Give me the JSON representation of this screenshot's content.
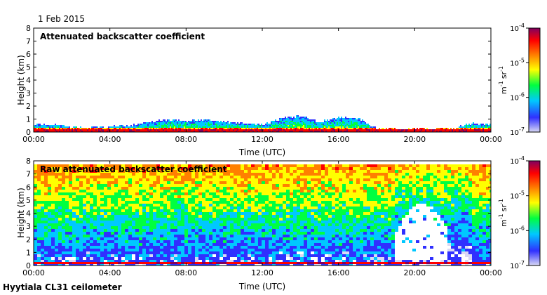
{
  "date": "1 Feb 2015",
  "footer": "Hyytiala CL31 ceilometer",
  "colors": {
    "colormap": [
      "#d8d8f4",
      "#3030ff",
      "#00c8ff",
      "#00ff40",
      "#ffff00",
      "#ff8000",
      "#ff0000",
      "#800060"
    ],
    "axis": "#000000"
  },
  "chart_data": [
    {
      "type": "heatmap",
      "title": "Attenuated backscatter coefficient",
      "xlabel": "Time (UTC)",
      "ylabel": "Height (km)",
      "x_ticks": [
        "00:00",
        "04:00",
        "08:00",
        "12:00",
        "16:00",
        "20:00",
        "00:00"
      ],
      "y_ticks": [
        0,
        1,
        2,
        3,
        4,
        5,
        6,
        7,
        8
      ],
      "xlim_hours": [
        0,
        24
      ],
      "ylim_km": [
        0,
        8
      ],
      "colorbar": {
        "scale": "log",
        "range": [
          1e-07,
          0.0001
        ],
        "tick_labels": [
          {
            "base": "10",
            "exp": "-4"
          },
          {
            "base": "10",
            "exp": "-5"
          },
          {
            "base": "10",
            "exp": "-6"
          },
          {
            "base": "10",
            "exp": "-7"
          }
        ],
        "unit": {
          "m": "m",
          "m_exp": "-1",
          "sr": "sr",
          "sr_exp": "-1"
        }
      },
      "layer_top_km": [
        {
          "hour": 0,
          "km": 0.5
        },
        {
          "hour": 1,
          "km": 0.5
        },
        {
          "hour": 2,
          "km": 0.35
        },
        {
          "hour": 3,
          "km": 0.3
        },
        {
          "hour": 4,
          "km": 0.35
        },
        {
          "hour": 5,
          "km": 0.45
        },
        {
          "hour": 6,
          "km": 0.7
        },
        {
          "hour": 7,
          "km": 0.9
        },
        {
          "hour": 8,
          "km": 0.8
        },
        {
          "hour": 9,
          "km": 0.9
        },
        {
          "hour": 10,
          "km": 0.75
        },
        {
          "hour": 11,
          "km": 0.6
        },
        {
          "hour": 12,
          "km": 0.5
        },
        {
          "hour": 13,
          "km": 1.0
        },
        {
          "hour": 14,
          "km": 1.2
        },
        {
          "hour": 15,
          "km": 0.7
        },
        {
          "hour": 16,
          "km": 1.1
        },
        {
          "hour": 17,
          "km": 1.0
        },
        {
          "hour": 18,
          "km": 0.25
        },
        {
          "hour": 19,
          "km": 0.2
        },
        {
          "hour": 20,
          "km": 0.2
        },
        {
          "hour": 21,
          "km": 0.2
        },
        {
          "hour": 22,
          "km": 0.25
        },
        {
          "hour": 23,
          "km": 0.6
        },
        {
          "hour": 24,
          "km": 0.5
        }
      ]
    },
    {
      "type": "heatmap",
      "title": "Raw attenuated backscatter coefficient",
      "xlabel": "Time (UTC)",
      "ylabel": "Height (km)",
      "x_ticks": [
        "00:00",
        "04:00",
        "08:00",
        "12:00",
        "16:00",
        "20:00",
        "00:00"
      ],
      "y_ticks": [
        0,
        1,
        2,
        3,
        4,
        5,
        6,
        7,
        8
      ],
      "xlim_hours": [
        0,
        24
      ],
      "ylim_km": [
        0,
        8
      ],
      "colorbar": {
        "scale": "log",
        "range": [
          1e-07,
          0.0001
        ],
        "tick_labels": [
          {
            "base": "10",
            "exp": "-4"
          },
          {
            "base": "10",
            "exp": "-5"
          },
          {
            "base": "10",
            "exp": "-6"
          },
          {
            "base": "10",
            "exp": "-7"
          }
        ],
        "unit": {
          "m": "m",
          "m_exp": "-1",
          "sr": "sr",
          "sr_exp": "-1"
        }
      },
      "noise_top_km": 7.7,
      "clear_region": {
        "hour_start": 19.0,
        "hour_end": 21.8,
        "km_top": 4.6
      }
    }
  ]
}
